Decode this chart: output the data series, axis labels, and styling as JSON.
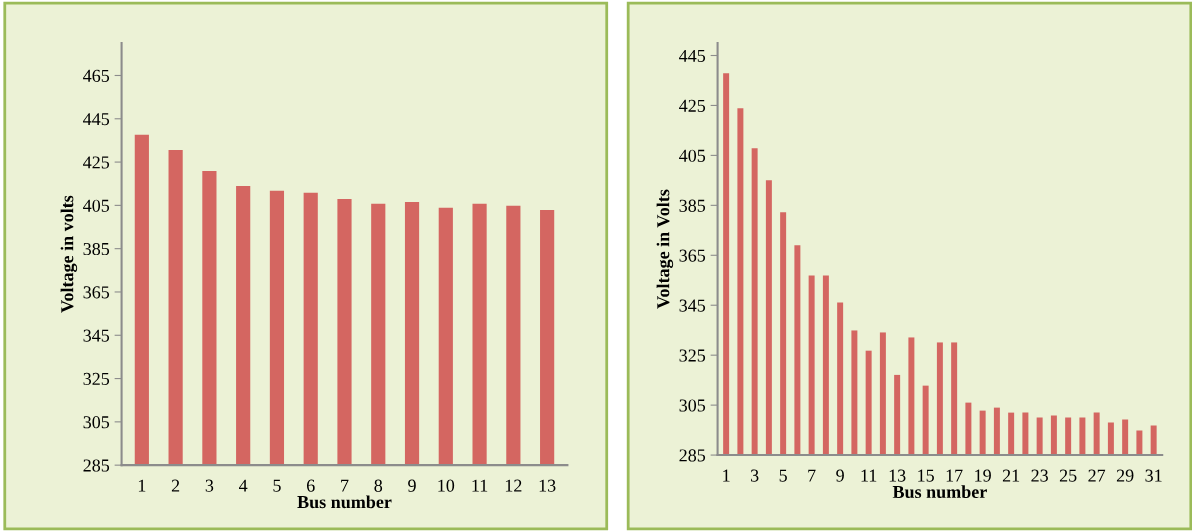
{
  "chart_data": [
    {
      "type": "bar",
      "xlabel": "Bus number",
      "ylabel": "Voltage in volts",
      "categories": [
        "1",
        "2",
        "3",
        "4",
        "5",
        "6",
        "7",
        "8",
        "9",
        "10",
        "11",
        "12",
        "13"
      ],
      "series": [
        {
          "color": "#d46661",
          "values": [
            437.6,
            430.6,
            420.9,
            414.0,
            411.7,
            410.8,
            408.0,
            405.7,
            406.6,
            403.9,
            405.7,
            404.8,
            402.9
          ]
        }
      ],
      "ylim": [
        285,
        480
      ],
      "yticks": [
        285,
        305,
        325,
        345,
        365,
        385,
        405,
        425,
        445,
        465
      ],
      "grid": false
    },
    {
      "type": "bar",
      "xlabel": "Bus number",
      "ylabel": "Voltage in Volts",
      "categories": [
        "1",
        null,
        "3",
        null,
        "5",
        null,
        "7",
        null,
        "9",
        null,
        "11",
        null,
        "13",
        null,
        "15",
        null,
        "17",
        null,
        "19",
        null,
        "21",
        null,
        "23",
        null,
        "25",
        null,
        "27",
        null,
        "29",
        null,
        "31"
      ],
      "series": [
        {
          "color": "#d46661",
          "values": [
            437.9,
            423.9,
            407.9,
            395.0,
            382.2,
            369.0,
            356.9,
            356.9,
            346.1,
            334.9,
            326.8,
            334.1,
            317.1,
            332.1,
            312.8,
            330.1,
            330.1,
            306.0,
            302.8,
            304.0,
            302.0,
            302.0,
            300.0,
            300.8,
            300.0,
            300.0,
            302.0,
            298.0,
            299.2,
            294.8,
            296.8
          ]
        }
      ],
      "ylim": [
        285,
        450
      ],
      "yticks": [
        285,
        305,
        325,
        345,
        365,
        385,
        405,
        425,
        445
      ],
      "grid": false
    }
  ]
}
